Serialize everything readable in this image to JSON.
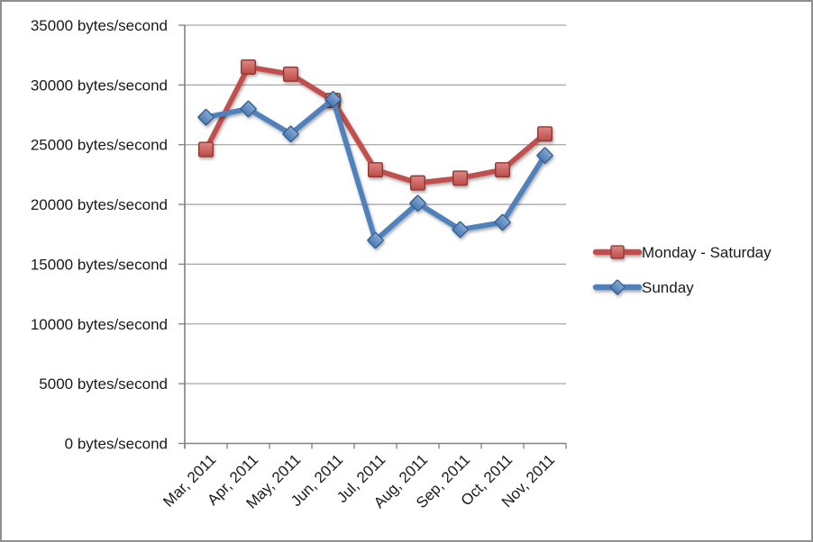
{
  "window": {
    "background": "#ffffff",
    "border_color": "#8f8f8f"
  },
  "chart_data": {
    "type": "line",
    "title": "",
    "categories": [
      "Mar, 2011",
      "Apr, 2011",
      "May, 2011",
      "Jun, 2011",
      "Jul, 2011",
      "Aug, 2011",
      "Sep, 2011",
      "Oct, 2011",
      "Nov, 2011"
    ],
    "series": [
      {
        "name": "Monday - Saturday",
        "color": "#C0504D",
        "marker": "square",
        "marker_fill_top": "#DE8682",
        "marker_fill_bottom": "#BE4B48",
        "marker_stroke": "#8C3836",
        "values": [
          24600,
          31500,
          30900,
          28700,
          22900,
          21800,
          22200,
          22900,
          25900
        ]
      },
      {
        "name": "Sunday",
        "color": "#4F81BD",
        "marker": "diamond",
        "marker_fill_top": "#85A9D4",
        "marker_fill_bottom": "#4A7AB5",
        "marker_stroke": "#38618F",
        "values": [
          27300,
          28000,
          25900,
          28800,
          17000,
          20100,
          17900,
          18500,
          24100
        ]
      }
    ],
    "ylim": [
      0,
      35000
    ],
    "y_step": 5000,
    "y_unit_suffix": " bytes/second",
    "y_tick_labels": [
      "0 bytes/second",
      "5000 bytes/second",
      "10000 bytes/second",
      "15000 bytes/second",
      "20000 bytes/second",
      "25000 bytes/second",
      "30000 bytes/second",
      "35000 bytes/second"
    ],
    "xlabel": "",
    "ylabel": "",
    "grid": true,
    "legend_position": "right",
    "axis_color": "#808080",
    "grid_color": "#A6A6A6",
    "text_color": "#1a1a1a"
  }
}
